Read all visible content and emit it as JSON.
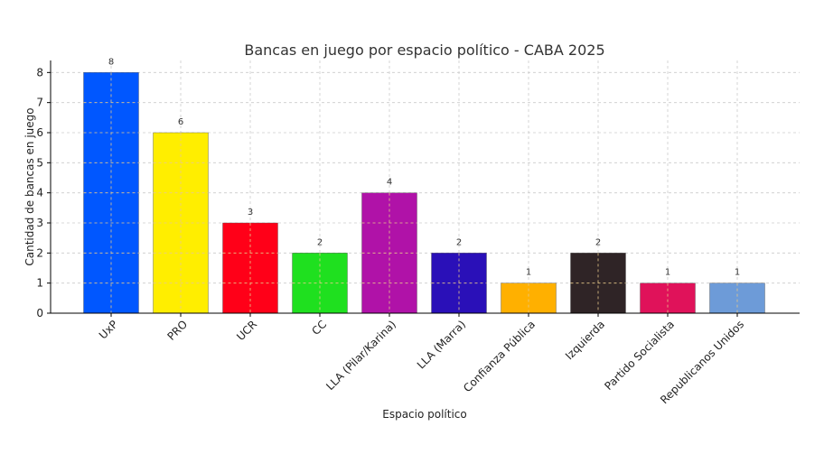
{
  "chart_data": {
    "type": "bar",
    "title": "Bancas en juego por espacio político - CABA 2025",
    "xlabel": "Espacio político",
    "ylabel": "Cantidad de bancas en juego",
    "ylim": [
      0,
      8.4
    ],
    "yticks": [
      0,
      1,
      2,
      3,
      4,
      5,
      6,
      7,
      8
    ],
    "grid": true,
    "categories": [
      "UxP",
      "PRO",
      "UCR",
      "CC",
      "LLA (Pilar/Karina)",
      "LLA (Marra)",
      "Confianza Pública",
      "Izquierda",
      "Partido Socialista",
      "Republicanos Unidos"
    ],
    "values": [
      8,
      6,
      3,
      2,
      4,
      2,
      1,
      2,
      1,
      1
    ],
    "colors": [
      "#0057ff",
      "#ffee00",
      "#ff0018",
      "#1fe01f",
      "#b012a8",
      "#2a10b8",
      "#ffb000",
      "#2f2426",
      "#e0125a",
      "#6d9bd8"
    ]
  }
}
